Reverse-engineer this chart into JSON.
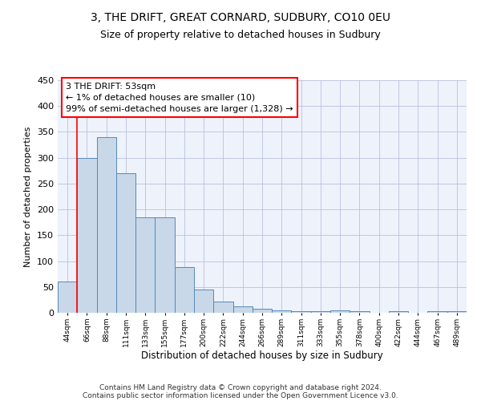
{
  "title_line1": "3, THE DRIFT, GREAT CORNARD, SUDBURY, CO10 0EU",
  "title_line2": "Size of property relative to detached houses in Sudbury",
  "xlabel": "Distribution of detached houses by size in Sudbury",
  "ylabel": "Number of detached properties",
  "bar_color": "#c8d8e8",
  "bar_edge_color": "#5588bb",
  "categories": [
    "44sqm",
    "66sqm",
    "88sqm",
    "111sqm",
    "133sqm",
    "155sqm",
    "177sqm",
    "200sqm",
    "222sqm",
    "244sqm",
    "266sqm",
    "289sqm",
    "311sqm",
    "333sqm",
    "355sqm",
    "378sqm",
    "400sqm",
    "422sqm",
    "444sqm",
    "467sqm",
    "489sqm"
  ],
  "values": [
    60,
    300,
    340,
    270,
    185,
    185,
    88,
    45,
    22,
    12,
    7,
    5,
    3,
    3,
    4,
    3,
    0,
    3,
    0,
    3,
    3
  ],
  "ylim": [
    0,
    450
  ],
  "yticks": [
    0,
    50,
    100,
    150,
    200,
    250,
    300,
    350,
    400,
    450
  ],
  "annotation_line1": "3 THE DRIFT: 53sqm",
  "annotation_line2": "← 1% of detached houses are smaller (10)",
  "annotation_line3": "99% of semi-detached houses are larger (1,328) →",
  "footer_line1": "Contains HM Land Registry data © Crown copyright and database right 2024.",
  "footer_line2": "Contains public sector information licensed under the Open Government Licence v3.0.",
  "background_color": "#eef2fb",
  "grid_color": "#b0b8d8",
  "title_fontsize": 10,
  "subtitle_fontsize": 9,
  "annotation_fontsize": 8,
  "footer_fontsize": 6.5
}
